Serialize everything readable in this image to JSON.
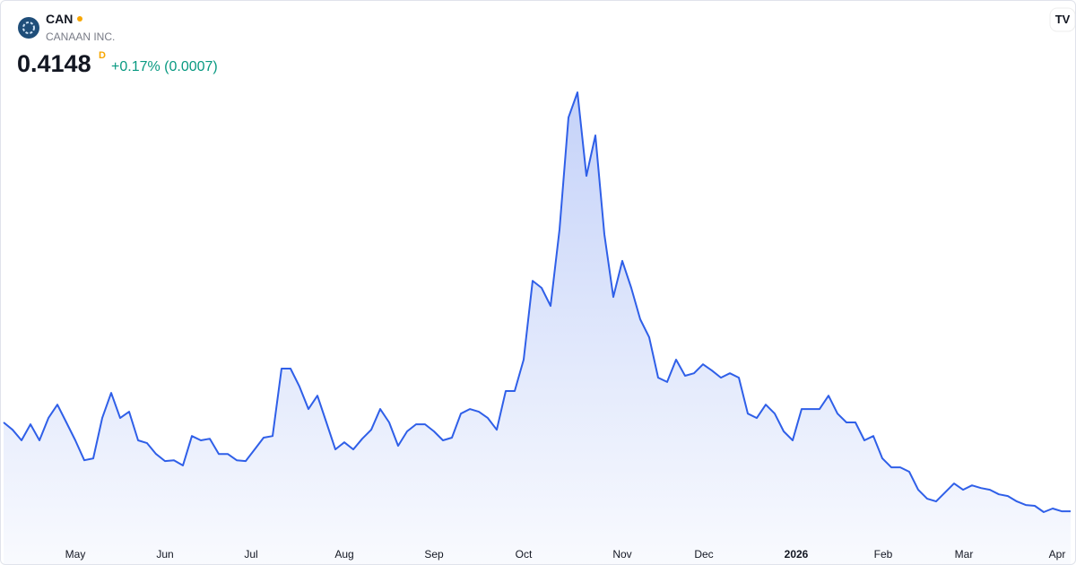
{
  "header": {
    "symbol": "CAN",
    "company": "CANAAN INC.",
    "price": "0.4148",
    "price_flag": "D",
    "change": "+0.17% (0.0007)"
  },
  "chart_data": {
    "type": "area",
    "series": [
      {
        "color": "#2f5fe8",
        "values": [
          0.741,
          0.714,
          0.675,
          0.734,
          0.675,
          0.757,
          0.806,
          0.741,
          0.675,
          0.602,
          0.609,
          0.757,
          0.849,
          0.757,
          0.78,
          0.675,
          0.665,
          0.625,
          0.599,
          0.602,
          0.583,
          0.691,
          0.675,
          0.681,
          0.625,
          0.625,
          0.602,
          0.599,
          0.642,
          0.685,
          0.691,
          0.938,
          0.938,
          0.872,
          0.79,
          0.839,
          0.741,
          0.642,
          0.668,
          0.642,
          0.681,
          0.714,
          0.79,
          0.741,
          0.655,
          0.708,
          0.734,
          0.734,
          0.708,
          0.675,
          0.685,
          0.773,
          0.79,
          0.78,
          0.757,
          0.714,
          0.856,
          0.856,
          0.971,
          1.26,
          1.234,
          1.168,
          1.448,
          1.859,
          1.951,
          1.645,
          1.793,
          1.431,
          1.201,
          1.333,
          1.234,
          1.119,
          1.053,
          0.905,
          0.889,
          0.971,
          0.912,
          0.921,
          0.954,
          0.931,
          0.905,
          0.921,
          0.905,
          0.773,
          0.757,
          0.806,
          0.773,
          0.708,
          0.675,
          0.79,
          0.79,
          0.79,
          0.839,
          0.773,
          0.741,
          0.741,
          0.675,
          0.691,
          0.609,
          0.576,
          0.576,
          0.56,
          0.494,
          0.461,
          0.451,
          0.484,
          0.517,
          0.494,
          0.51,
          0.5,
          0.494,
          0.477,
          0.471,
          0.451,
          0.438,
          0.435,
          0.412,
          0.425,
          0.4148,
          0.4148
        ]
      }
    ],
    "xticks": [
      {
        "value": 8,
        "label": "May"
      },
      {
        "value": 18,
        "label": "Jun"
      },
      {
        "value": 27.6,
        "label": "Jul"
      },
      {
        "value": 38,
        "label": "Aug"
      },
      {
        "value": 48,
        "label": "Sep"
      },
      {
        "value": 58,
        "label": "Oct"
      },
      {
        "value": 69,
        "label": "Nov"
      },
      {
        "value": 78.1,
        "label": "Dec"
      },
      {
        "value": 88.4,
        "label": "2026"
      },
      {
        "value": 98.1,
        "label": "Feb"
      },
      {
        "value": 107.1,
        "label": "Mar"
      },
      {
        "value": 117.5,
        "label": "Apr"
      }
    ]
  }
}
